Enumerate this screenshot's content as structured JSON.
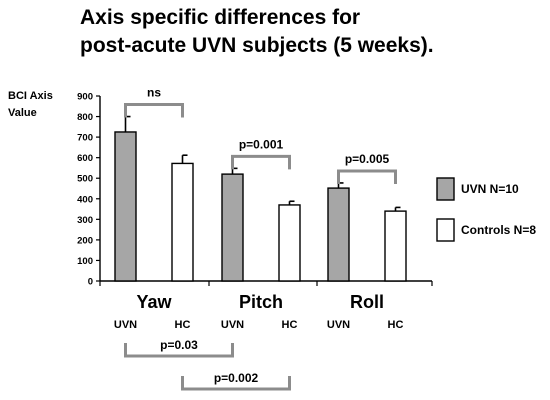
{
  "chart_data": {
    "type": "bar",
    "title_lines": [
      "Axis  specific differences for",
      "post-acute UVN subjects (5 weeks)."
    ],
    "ylabel_lines": [
      "BCI  Axis",
      "Value"
    ],
    "yticks": [
      0,
      100,
      200,
      300,
      400,
      500,
      600,
      700,
      800,
      900
    ],
    "ylim": [
      0,
      900
    ],
    "groups": [
      "Yaw",
      "Pitch",
      "Roll"
    ],
    "subgroup_labels": [
      "UVN",
      "HC"
    ],
    "series": [
      {
        "name": "UVN N=10",
        "color": "#a6a6a6",
        "values": [
          725,
          520,
          452
        ],
        "errors": [
          75,
          28,
          25
        ]
      },
      {
        "name": "Controls N=8",
        "color": "#ffffff",
        "values": [
          572,
          370,
          340
        ],
        "errors": [
          40,
          18,
          18
        ]
      }
    ],
    "annotations_above": [
      {
        "label": "ns",
        "group": 0
      },
      {
        "label": "p=0.001",
        "group": 1
      },
      {
        "label": "p=0.005",
        "group": 2
      }
    ],
    "annotations_below": [
      {
        "label": "p=0.03",
        "from": "Yaw UVN",
        "to": "Pitch UVN"
      },
      {
        "label": "p=0.002",
        "from": "Yaw HC",
        "to": "Pitch HC"
      }
    ],
    "grid": false,
    "legend_position": "right"
  }
}
